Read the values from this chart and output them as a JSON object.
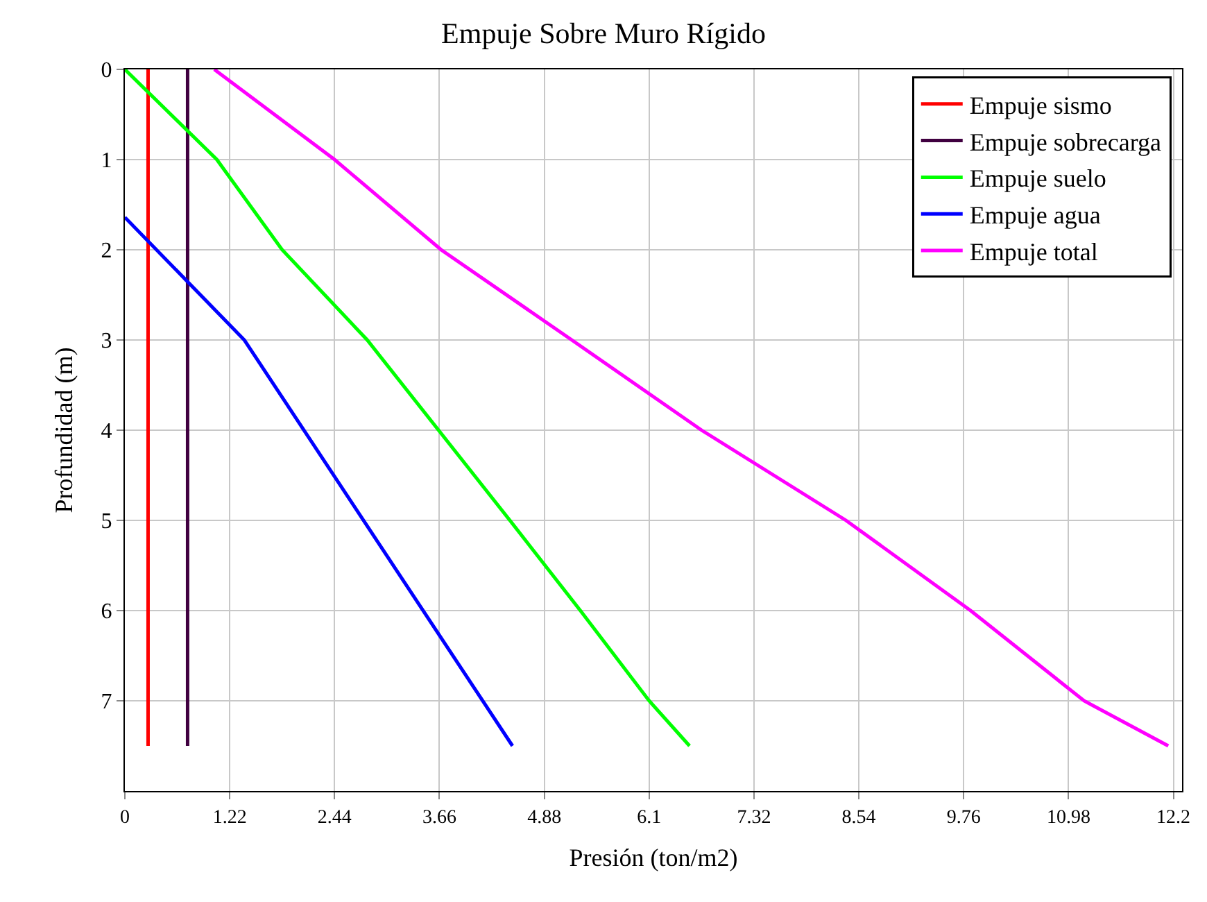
{
  "chart_data": {
    "type": "line",
    "title": "Empuje Sobre Muro Rígido",
    "xlabel": "Presión (ton/m2)",
    "ylabel": "Profundidad (m)",
    "xlim": [
      0,
      12.3
    ],
    "xticks": [
      0,
      1.22,
      2.44,
      3.66,
      4.88,
      6.1,
      7.32,
      8.54,
      9.76,
      10.98,
      12.2
    ],
    "ylim": [
      8,
      0
    ],
    "yticks": [
      0,
      1,
      2,
      3,
      4,
      5,
      6,
      7
    ],
    "grid": true,
    "legend": "top right",
    "marker": "none",
    "line_style": "solid",
    "series": [
      {
        "name": "Empuje sismo",
        "color": "#ff0000",
        "x": [
          0.27,
          0.27
        ],
        "values": [
          0,
          7.5
        ]
      },
      {
        "name": "Empuje sobrecarga",
        "color": "#400040",
        "x": [
          0.73,
          0.73
        ],
        "values": [
          0,
          7.5
        ]
      },
      {
        "name": "Empuje suelo",
        "color": "#00ff00",
        "x": [
          0,
          1.07,
          1.83,
          2.82,
          3.65,
          4.48,
          5.3,
          6.1,
          6.57
        ],
        "values": [
          0,
          1,
          2,
          3,
          4,
          5,
          6,
          7,
          7.5
        ]
      },
      {
        "name": "Empuje agua",
        "color": "#0000ff",
        "x": [
          0,
          1.39,
          4.51
        ],
        "values": [
          1.64,
          3,
          7.5
        ]
      },
      {
        "name": "Empuje total",
        "color": "#ff00ff",
        "x": [
          1.04,
          2.44,
          3.68,
          5.2,
          6.71,
          8.39,
          9.84,
          11.16,
          12.14
        ],
        "values": [
          0,
          1,
          2,
          3,
          4,
          5,
          6,
          7,
          7.5
        ]
      }
    ]
  }
}
